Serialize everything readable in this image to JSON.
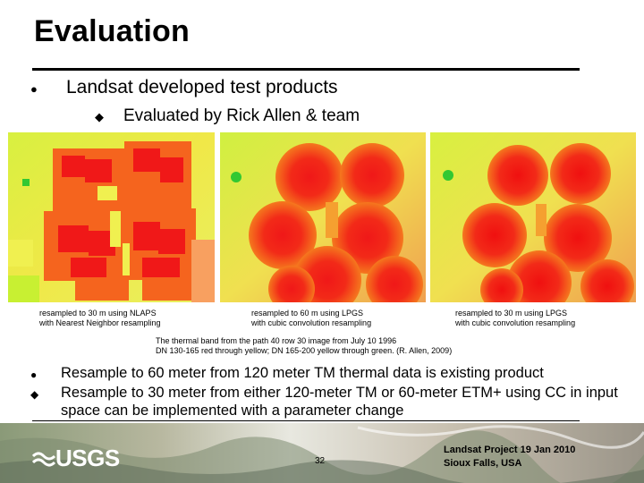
{
  "slide": {
    "title": "Evaluation",
    "bullet1": "Landsat developed test products",
    "bullet2": "Evaluated by Rick Allen & team",
    "bullet_marks": {
      "round": "●",
      "diamond": "◆"
    }
  },
  "panels": [
    {
      "caption_line1": "resampled to 30 m using NLAPS",
      "caption_line2": "with Nearest Neighbor resampling"
    },
    {
      "caption_line1": "resampled to 60 m using LPGS",
      "caption_line2": "with cubic convolution resampling"
    },
    {
      "caption_line1": "resampled to 30 m using LPGS",
      "caption_line2": "with cubic convolution resampling"
    }
  ],
  "note": {
    "line1": "The thermal band from the path 40 row 30 image from July 10 1996",
    "line2": "DN 130-165 red through yellow; DN 165-200 yellow through green. (R. Allen, 2009)"
  },
  "bottom_bullets": [
    {
      "text": "Resample to 60 meter from 120 meter TM thermal data is existing product"
    },
    {
      "text": "Resample to 30 meter from either 120-meter TM or 60-meter ETM+ using CC in input space can be implemented with a parameter change"
    }
  ],
  "footer": {
    "logo_text": "USGS",
    "page_number": "32",
    "project_line": "Landsat Project 19 Jan 2010",
    "location_line": "Sioux Falls, USA"
  },
  "colors": {
    "red": "#f01818",
    "orange": "#f5641e",
    "yellow": "#f0f050",
    "lime": "#c8f032",
    "green": "#32c832"
  }
}
